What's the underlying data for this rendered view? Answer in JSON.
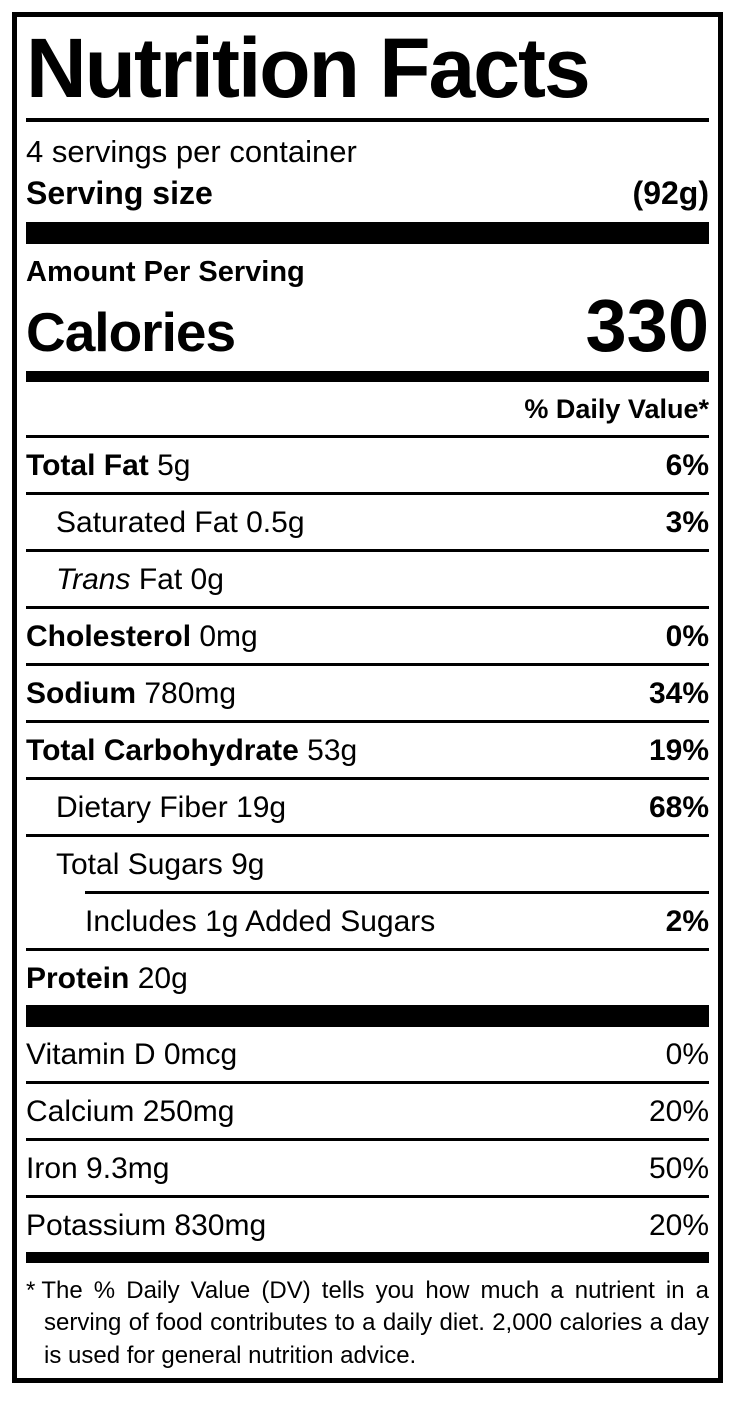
{
  "label": {
    "title": "Nutrition Facts",
    "servings_per_container": "4 servings per container",
    "serving_size": {
      "label": "Serving size",
      "value": "(92g)"
    },
    "amount_per_serving": "Amount Per Serving",
    "calories": {
      "label": "Calories",
      "value": "330"
    },
    "daily_value_header": "% Daily Value*",
    "nutrients": [
      {
        "name": "Total Fat",
        "amount": "5g",
        "dv": "6%"
      },
      {
        "name": "Saturated Fat",
        "amount": "0.5g",
        "dv": "3%"
      },
      {
        "name_italic": "Trans",
        "name": "Fat",
        "amount": "0g",
        "dv": ""
      },
      {
        "name": "Cholesterol",
        "amount": "0mg",
        "dv": "0%"
      },
      {
        "name": "Sodium",
        "amount": "780mg",
        "dv": "34%"
      },
      {
        "name": "Total Carbohydrate",
        "amount": "53g",
        "dv": "19%"
      },
      {
        "name": "Dietary Fiber",
        "amount": "19g",
        "dv": "68%"
      },
      {
        "name": "Total Sugars",
        "amount": "9g",
        "dv": ""
      },
      {
        "name": "Includes 1g Added Sugars",
        "amount": "",
        "dv": "2%"
      },
      {
        "name": "Protein",
        "amount": "20g",
        "dv": ""
      }
    ],
    "vitamins": [
      {
        "name": "Vitamin D",
        "amount": "0mcg",
        "dv": "0%"
      },
      {
        "name": "Calcium",
        "amount": "250mg",
        "dv": "20%"
      },
      {
        "name": "Iron",
        "amount": "9.3mg",
        "dv": "50%"
      },
      {
        "name": "Potassium",
        "amount": "830mg",
        "dv": "20%"
      }
    ],
    "footnote": {
      "marker": "*",
      "text": "The % Daily Value (DV) tells you how much a nutrient in a serving of food contributes to a daily diet. 2,000 calories a day is used for general nutrition advice."
    },
    "colors": {
      "ink": "#000000",
      "background": "#ffffff"
    }
  }
}
